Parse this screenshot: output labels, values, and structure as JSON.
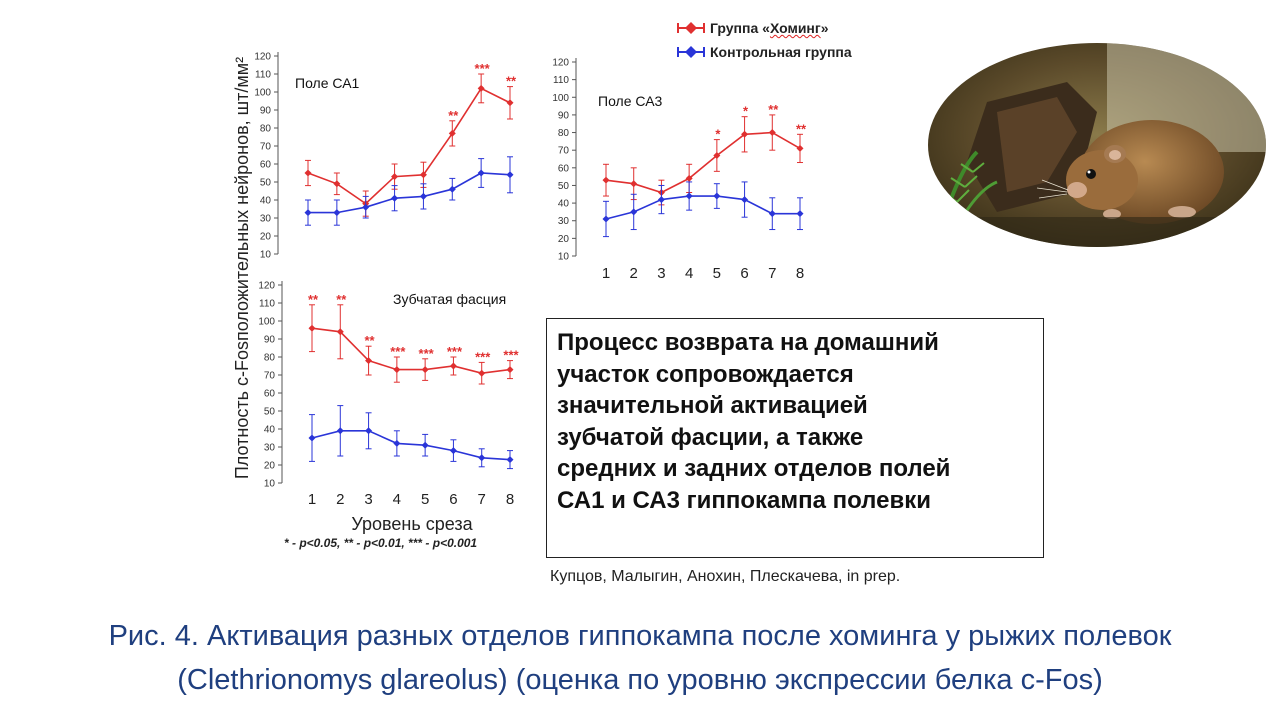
{
  "legend": {
    "items": [
      {
        "label_pre": "Группа «",
        "label_word": "Хоминг",
        "label_post": "»",
        "color": "#e03030"
      },
      {
        "label_pre": "",
        "label_word": "Контрольная группа",
        "label_post": "",
        "color": "#2a35d8"
      }
    ]
  },
  "y_label": "Плотность c-Fosположительных нейронов, шт/мм²",
  "x_label": "Уровень среза",
  "footnote": "* - p<0.05, ** - p<0.01, *** - p<0.001",
  "chart_data": [
    {
      "type": "line",
      "title": "Поле СА1",
      "categories": [
        1,
        2,
        3,
        4,
        5,
        6,
        7,
        8
      ],
      "ylim": [
        10,
        120
      ],
      "yticks": [
        10,
        20,
        30,
        40,
        50,
        60,
        70,
        80,
        90,
        100,
        110,
        120
      ],
      "series": [
        {
          "name": "Группа «Хоминг»",
          "color": "#e03030",
          "values": [
            55,
            49,
            38,
            53,
            54,
            77,
            102,
            94
          ],
          "errors": [
            7,
            6,
            7,
            7,
            7,
            7,
            8,
            9
          ],
          "significance": [
            "",
            "",
            "",
            "",
            "",
            "**",
            "***",
            "**"
          ]
        },
        {
          "name": "Контрольная группа",
          "color": "#2a35d8",
          "values": [
            33,
            33,
            36,
            41,
            42,
            46,
            55,
            54
          ],
          "errors": [
            7,
            7,
            6,
            7,
            7,
            6,
            8,
            10
          ],
          "significance": [
            "",
            "",
            "",
            "",
            "",
            "",
            "",
            ""
          ]
        }
      ]
    },
    {
      "type": "line",
      "title": "Поле СА3",
      "categories": [
        1,
        2,
        3,
        4,
        5,
        6,
        7,
        8
      ],
      "ylim": [
        10,
        120
      ],
      "yticks": [
        10,
        20,
        30,
        40,
        50,
        60,
        70,
        80,
        90,
        100,
        110,
        120
      ],
      "show_xticks": true,
      "series": [
        {
          "name": "Группа «Хоминг»",
          "color": "#e03030",
          "values": [
            53,
            51,
            46,
            54,
            67,
            79,
            80,
            71
          ],
          "errors": [
            9,
            9,
            7,
            8,
            9,
            10,
            10,
            8
          ],
          "significance": [
            "",
            "",
            "",
            "",
            "*",
            "*",
            "**",
            "**"
          ]
        },
        {
          "name": "Контрольная группа",
          "color": "#2a35d8",
          "values": [
            31,
            35,
            42,
            44,
            44,
            42,
            34,
            34
          ],
          "errors": [
            10,
            10,
            8,
            8,
            7,
            10,
            9,
            9
          ],
          "significance": [
            "",
            "",
            "",
            "",
            "",
            "",
            "",
            ""
          ]
        }
      ]
    },
    {
      "type": "line",
      "title": "Зубчатая фасция",
      "categories": [
        1,
        2,
        3,
        4,
        5,
        6,
        7,
        8
      ],
      "ylim": [
        10,
        120
      ],
      "yticks": [
        10,
        20,
        30,
        40,
        50,
        60,
        70,
        80,
        90,
        100,
        110,
        120
      ],
      "show_xticks": true,
      "series": [
        {
          "name": "Группа «Хоминг»",
          "color": "#e03030",
          "values": [
            96,
            94,
            78,
            73,
            73,
            75,
            71,
            73
          ],
          "errors": [
            13,
            15,
            8,
            7,
            6,
            5,
            6,
            5
          ],
          "significance": [
            "**",
            "**",
            "**",
            "***",
            "***",
            "***",
            "***",
            "***"
          ]
        },
        {
          "name": "Контрольная группа",
          "color": "#2a35d8",
          "values": [
            35,
            39,
            39,
            32,
            31,
            28,
            24,
            23
          ],
          "errors": [
            13,
            14,
            10,
            7,
            6,
            6,
            5,
            5
          ],
          "significance": [
            "",
            "",
            "",
            "",
            "",
            "",
            "",
            ""
          ]
        }
      ]
    }
  ],
  "conclusion": "Процесс возврата на домашний\nучасток сопровождается\nзначительной активацией\nзубчатой фасции, а также\nсредних и задних отделов полей\nСА1 и СА3 гиппокампа полевки",
  "authors": "Купцов, Малыгин, Анохин, Плескачева, in prep.",
  "caption": "Рис. 4. Активация разных отделов гиппокампа после хоминга у рыжих полевок\n(Clethrionomys glareolus) (оценка по уровню экспрессии белка c-Fos)"
}
